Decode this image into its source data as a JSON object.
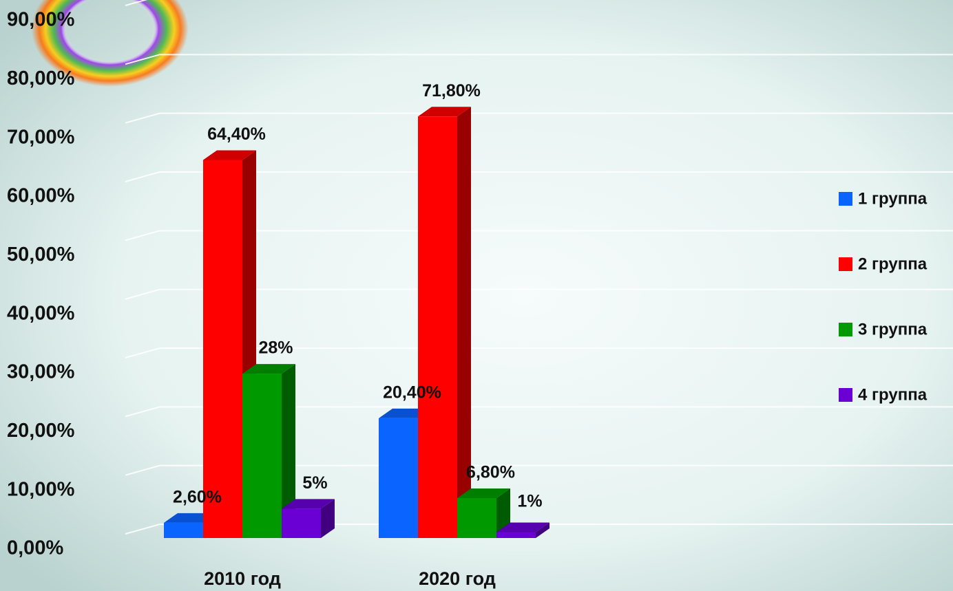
{
  "chart_data": {
    "type": "bar3d",
    "categories": [
      "2010 год",
      "2020 год"
    ],
    "series": [
      {
        "name": "1 группа",
        "color": "#0a64ff",
        "values": [
          2.6,
          20.4
        ],
        "value_labels": [
          "2,60%",
          "20,40%"
        ]
      },
      {
        "name": "2 группа",
        "color": "#ff0000",
        "values": [
          64.4,
          71.8
        ],
        "value_labels": [
          "64,40%",
          "71,80%"
        ]
      },
      {
        "name": "3 группа",
        "color": "#009a00",
        "values": [
          28,
          6.8
        ],
        "value_labels": [
          "28%",
          "6,80%"
        ]
      },
      {
        "name": "4 группа",
        "color": "#6a00d4",
        "values": [
          5,
          1
        ],
        "value_labels": [
          "5%",
          "1%"
        ]
      }
    ],
    "ylim": [
      0,
      90
    ],
    "yticks": [
      {
        "value": 0,
        "label": "0,00%"
      },
      {
        "value": 10,
        "label": "10,00%"
      },
      {
        "value": 20,
        "label": "20,00%"
      },
      {
        "value": 30,
        "label": "30,00%"
      },
      {
        "value": 40,
        "label": "40,00%"
      },
      {
        "value": 50,
        "label": "50,00%"
      },
      {
        "value": 60,
        "label": "60,00%"
      },
      {
        "value": 70,
        "label": "70,00%"
      },
      {
        "value": 80,
        "label": "80,00%"
      },
      {
        "value": 90,
        "label": "90,00%"
      }
    ],
    "grid": true,
    "legend": "right"
  }
}
